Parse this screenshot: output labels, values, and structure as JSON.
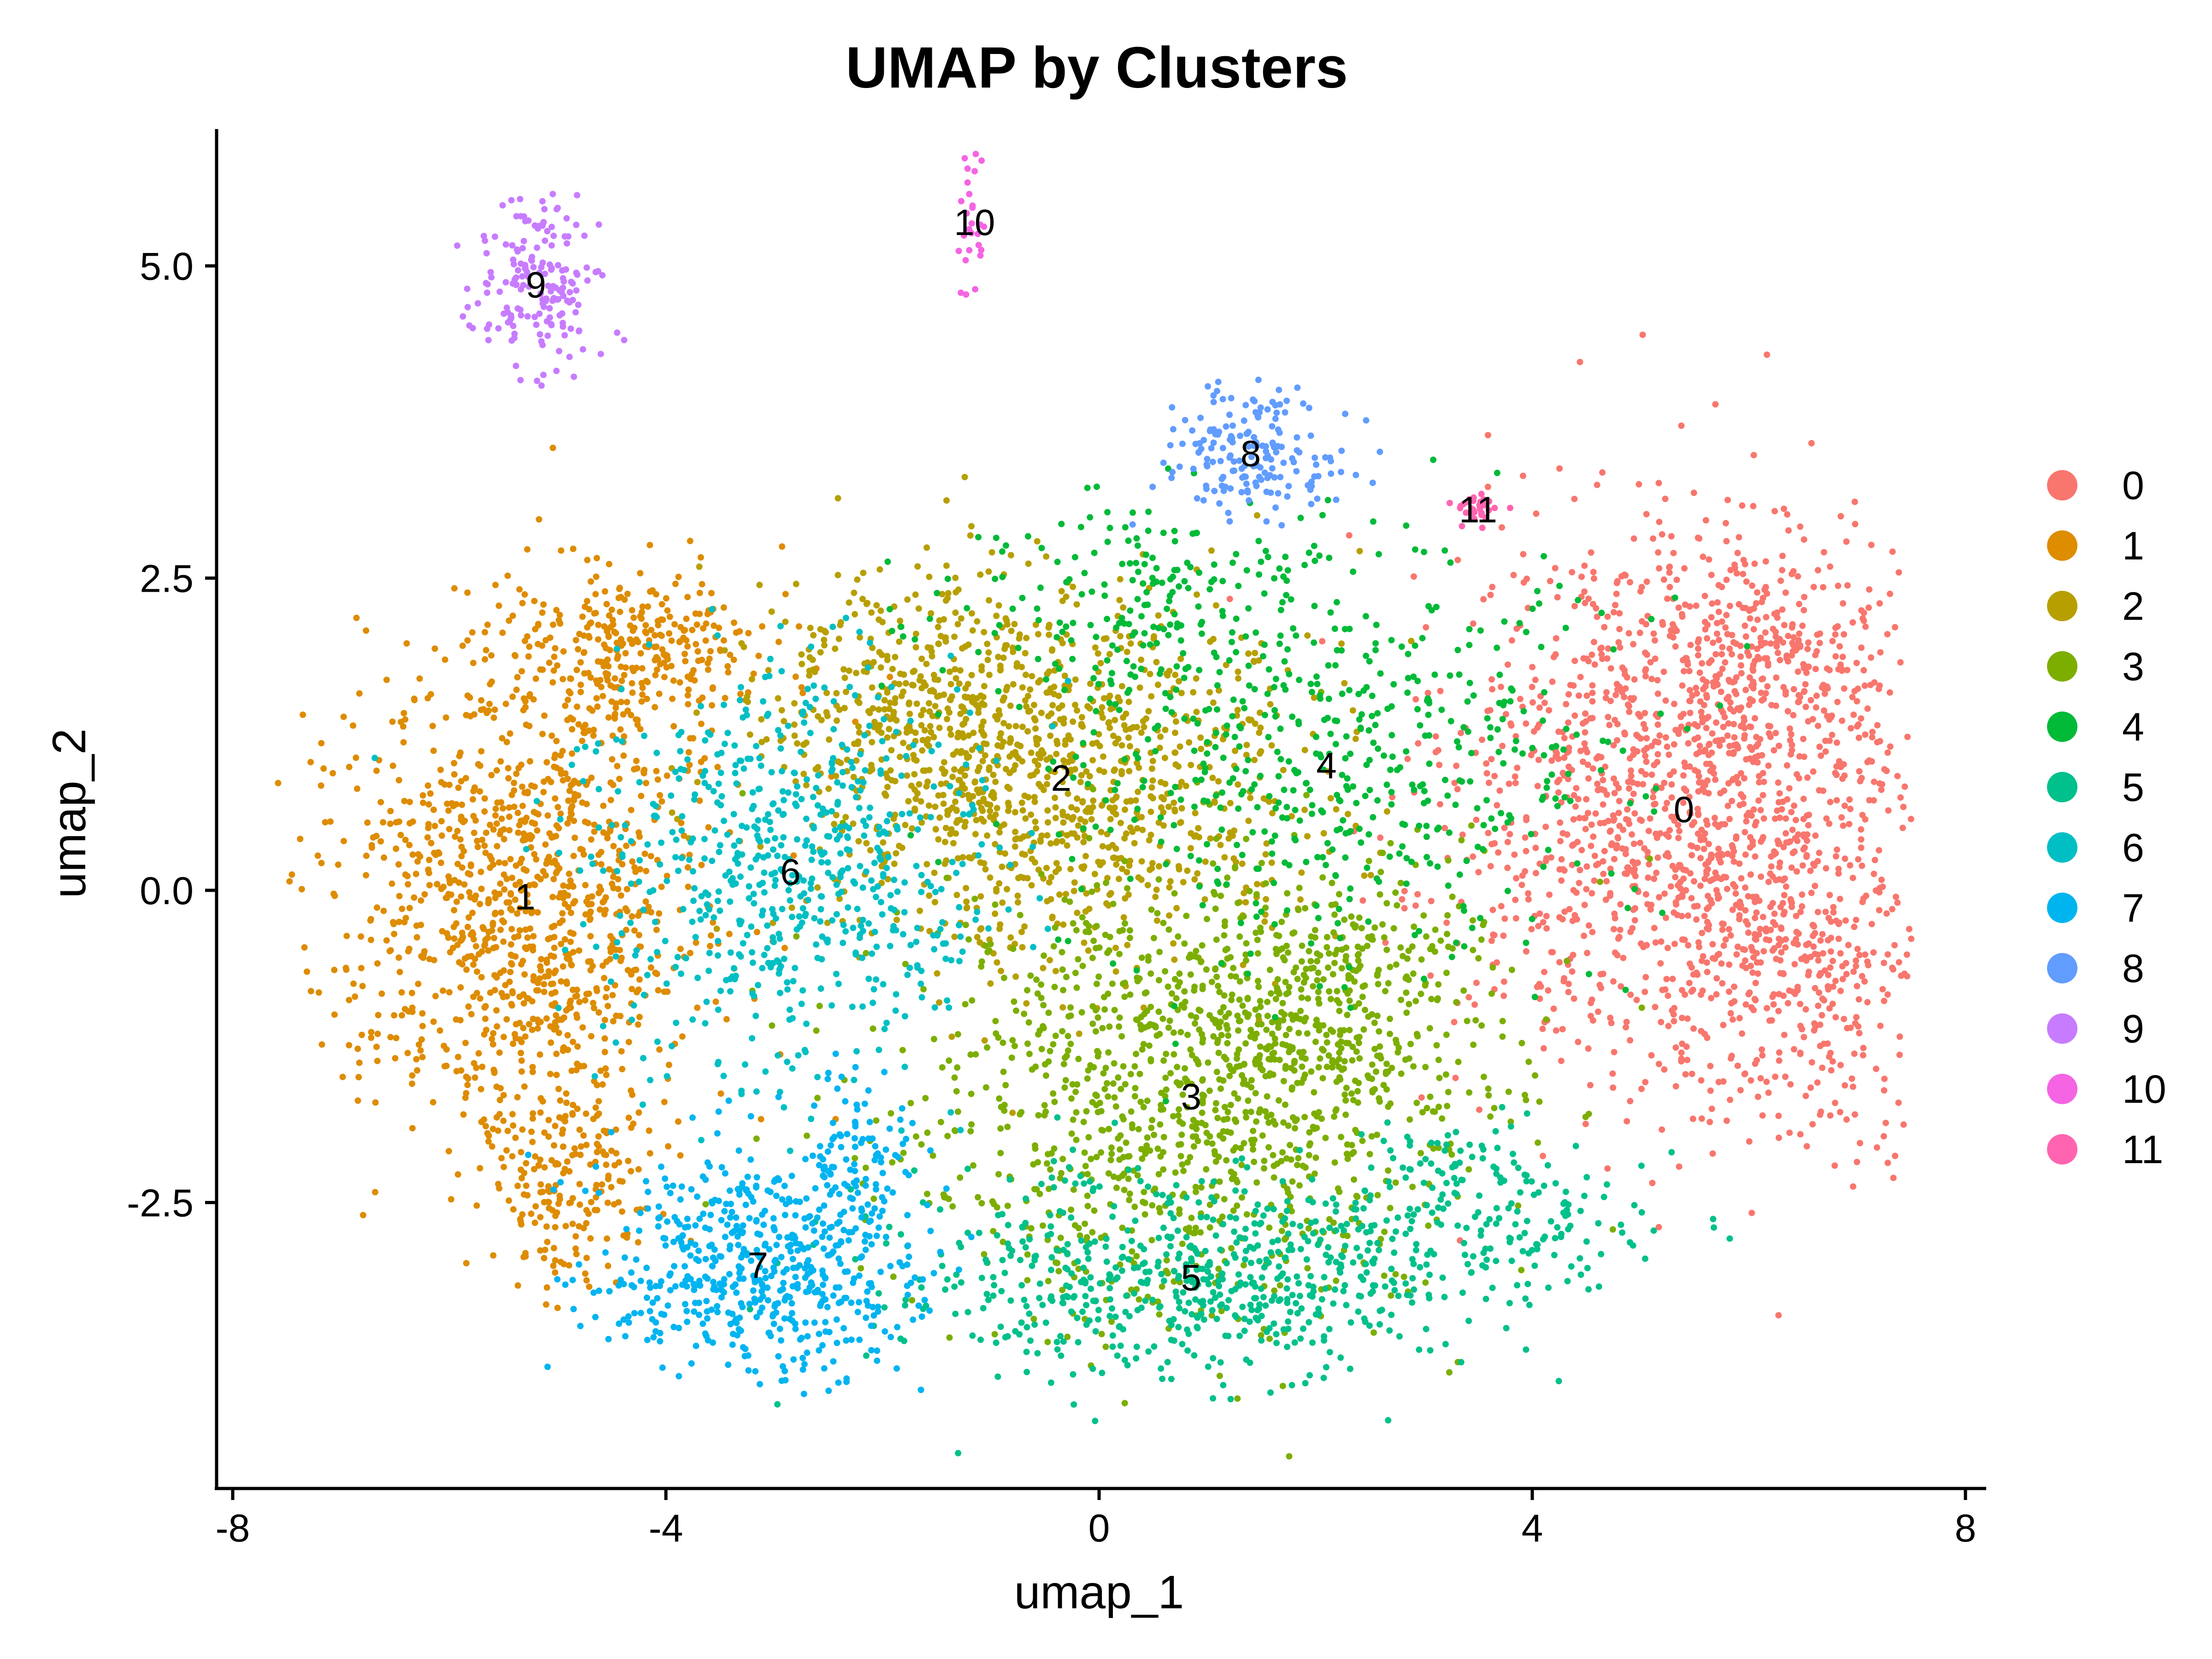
{
  "chart_data": {
    "type": "scatter",
    "title": "UMAP by Clusters",
    "xlabel": "umap_1",
    "ylabel": "umap_2",
    "xlim": [
      -8.2,
      8.2
    ],
    "ylim": [
      -4.75,
      6.1
    ],
    "x_ticks": [
      -8,
      -4,
      0,
      4,
      8
    ],
    "x_tick_labels": [
      "-8",
      "-4",
      "0",
      "4",
      "8"
    ],
    "y_ticks": [
      -2.5,
      0.0,
      2.5,
      5.0
    ],
    "y_tick_labels": [
      "-2.5",
      "0.0",
      "2.5",
      "5.0"
    ],
    "grid": false,
    "legend_position": "right",
    "series": [
      {
        "name": "0",
        "color": "#F8766D",
        "centroid": [
          5.4,
          0.65
        ]
      },
      {
        "name": "1",
        "color": "#DE8C00",
        "centroid": [
          -5.3,
          -0.05
        ]
      },
      {
        "name": "2",
        "color": "#B79F00",
        "centroid": [
          -0.35,
          0.9
        ]
      },
      {
        "name": "3",
        "color": "#7CAE00",
        "centroid": [
          0.85,
          -1.65
        ]
      },
      {
        "name": "4",
        "color": "#00BA38",
        "centroid": [
          2.1,
          1.0
        ]
      },
      {
        "name": "5",
        "color": "#00C08B",
        "centroid": [
          0.85,
          -3.1
        ]
      },
      {
        "name": "6",
        "color": "#00BFC4",
        "centroid": [
          -2.85,
          0.15
        ]
      },
      {
        "name": "7",
        "color": "#00B4F0",
        "centroid": [
          -3.15,
          -3.0
        ]
      },
      {
        "name": "8",
        "color": "#619CFF",
        "centroid": [
          1.4,
          3.5
        ]
      },
      {
        "name": "9",
        "color": "#C77CFF",
        "centroid": [
          -5.2,
          4.85
        ]
      },
      {
        "name": "10",
        "color": "#F564E3",
        "centroid": [
          -1.15,
          5.35
        ]
      },
      {
        "name": "11",
        "color": "#FF64B0",
        "centroid": [
          3.5,
          3.05
        ]
      }
    ],
    "cluster_labels": [
      {
        "text": "0",
        "x": 5.4,
        "y": 0.65
      },
      {
        "text": "1",
        "x": -5.3,
        "y": -0.05
      },
      {
        "text": "2",
        "x": -0.35,
        "y": 0.9
      },
      {
        "text": "3",
        "x": 0.85,
        "y": -1.65
      },
      {
        "text": "4",
        "x": 2.1,
        "y": 1.0
      },
      {
        "text": "5",
        "x": 0.85,
        "y": -3.1
      },
      {
        "text": "6",
        "x": -2.85,
        "y": 0.15
      },
      {
        "text": "7",
        "x": -3.15,
        "y": -3.0
      },
      {
        "text": "8",
        "x": 1.4,
        "y": 3.5
      },
      {
        "text": "9",
        "x": -5.2,
        "y": 4.85
      },
      {
        "text": "10",
        "x": -1.15,
        "y": 5.35
      },
      {
        "text": "11",
        "x": 3.5,
        "y": 3.05
      }
    ]
  }
}
